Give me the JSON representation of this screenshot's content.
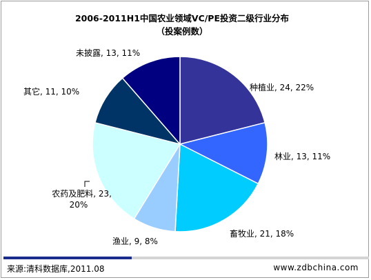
{
  "chart_data": {
    "type": "pie",
    "title": "2006-2011H1中国农业领域VC/PE投资二级行业分布",
    "subtitle": "（投案例数）",
    "slices": [
      {
        "name": "种植业",
        "value": 24,
        "percent": "22%",
        "label": "种植业, 24, 22%",
        "color": "#333399"
      },
      {
        "name": "林业",
        "value": 13,
        "percent": "11%",
        "label": "林业, 13, 11%",
        "color": "#3366ff"
      },
      {
        "name": "畜牧业",
        "value": 21,
        "percent": "18%",
        "label": "畜牧业, 21, 18%",
        "color": "#00ccff"
      },
      {
        "name": "渔业",
        "value": 9,
        "percent": "8%",
        "label": "渔业, 9, 8%",
        "color": "#99ccff"
      },
      {
        "name": "农药及肥料",
        "value": 23,
        "percent": "20%",
        "label_line1": "农药及肥料, 23,",
        "label_line2": "20%",
        "color": "#ccffff"
      },
      {
        "name": "其它",
        "value": 11,
        "percent": "10%",
        "label": "其它, 11, 10%",
        "color": "#003366"
      },
      {
        "name": "未披露",
        "value": 13,
        "percent": "11%",
        "label": "未披露, 13, 11%",
        "color": "#000080"
      }
    ]
  },
  "footer": {
    "source": "来源:清科数据库,2011.08",
    "site": "www.zdbchina.com",
    "bar_color": "#1a2c8c",
    "bar_fill": 0.35
  }
}
